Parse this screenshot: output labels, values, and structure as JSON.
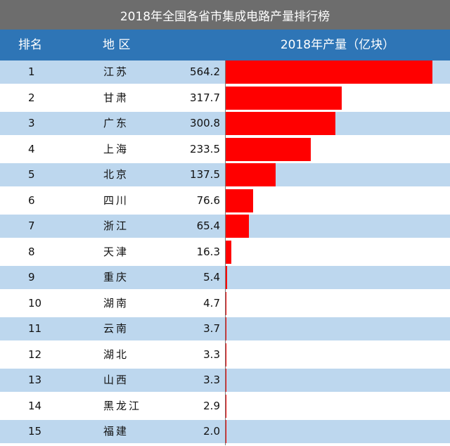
{
  "chart_data": {
    "type": "bar",
    "title": "2018年全国各省市集成电路产量排行榜",
    "headers": {
      "rank": "排名",
      "region": "地 区",
      "value": "2018年产量（亿块）"
    },
    "rows": [
      {
        "rank": "1",
        "region": "江苏",
        "value": "564.2"
      },
      {
        "rank": "2",
        "region": "甘肃",
        "value": "317.7"
      },
      {
        "rank": "3",
        "region": "广东",
        "value": "300.8"
      },
      {
        "rank": "4",
        "region": "上海",
        "value": "233.5"
      },
      {
        "rank": "5",
        "region": "北京",
        "value": "137.5"
      },
      {
        "rank": "6",
        "region": "四川",
        "value": "76.6"
      },
      {
        "rank": "7",
        "region": "浙江",
        "value": "65.4"
      },
      {
        "rank": "8",
        "region": "天津",
        "value": "16.3"
      },
      {
        "rank": "9",
        "region": "重庆",
        "value": "5.4"
      },
      {
        "rank": "10",
        "region": "湖南",
        "value": "4.7"
      },
      {
        "rank": "11",
        "region": "云南",
        "value": "3.7"
      },
      {
        "rank": "12",
        "region": "湖北",
        "value": "3.3"
      },
      {
        "rank": "13",
        "region": "山西",
        "value": "3.3"
      },
      {
        "rank": "14",
        "region": "黑龙江",
        "value": "2.9"
      },
      {
        "rank": "15",
        "region": "福建",
        "value": "2.0"
      }
    ],
    "colors": {
      "title_bg": "#6d6d6d",
      "header_bg": "#2e75b6",
      "row_stripe": "#bdd7ee",
      "bar": "#ff0000"
    }
  }
}
